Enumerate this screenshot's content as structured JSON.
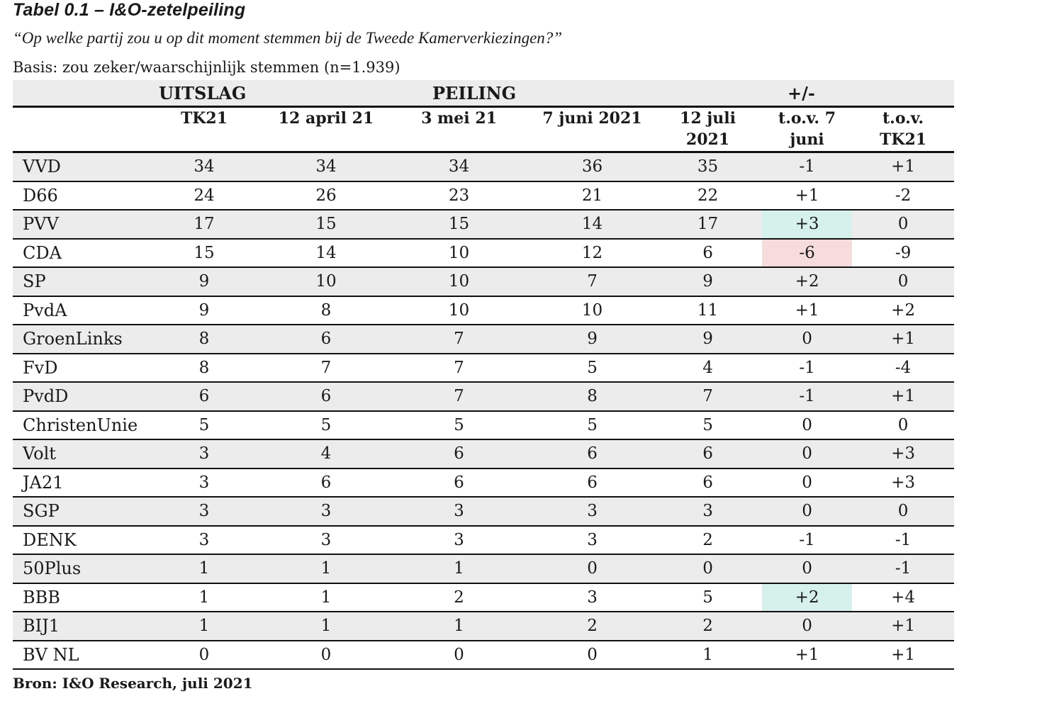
{
  "title": "Tabel 0.1 – I&O-zetelpeiling",
  "question": "“Op welke partij zou u op dit moment stemmen bij de Tweede Kamerverkiezingen?”",
  "basis": "Basis: zou zeker/waarschijnlijk stemmen (n=1.939)",
  "source": "Bron: I&O Research, juli 2021",
  "header_groups": {
    "uitslag": "UITSLAG",
    "peiling": "PEILING",
    "change": "+/-"
  },
  "columns": {
    "tk21": "TK21",
    "apr": "12 april 21",
    "mei": "3 mei 21",
    "jun": "7 juni 2021",
    "jul_line1": "12 juli",
    "jul_line2": "2021",
    "tov7_line1": "t.o.v. 7",
    "tov7_line2": "juni",
    "tovtk_line1": "t.o.v.",
    "tovtk_line2": "TK21"
  },
  "rows": [
    {
      "party": "VVD",
      "tk21": "34",
      "apr": "34",
      "mei": "34",
      "jun": "36",
      "jul": "35",
      "tov7": "-1",
      "tovtk": "+1"
    },
    {
      "party": "D66",
      "tk21": "24",
      "apr": "26",
      "mei": "23",
      "jun": "21",
      "jul": "22",
      "tov7": "+1",
      "tovtk": "-2"
    },
    {
      "party": "PVV",
      "tk21": "17",
      "apr": "15",
      "mei": "15",
      "jun": "14",
      "jul": "17",
      "tov7": "+3",
      "tovtk": "0"
    },
    {
      "party": "CDA",
      "tk21": "15",
      "apr": "14",
      "mei": "10",
      "jun": "12",
      "jul": "6",
      "tov7": "-6",
      "tovtk": "-9"
    },
    {
      "party": "SP",
      "tk21": "9",
      "apr": "10",
      "mei": "10",
      "jun": "7",
      "jul": "9",
      "tov7": "+2",
      "tovtk": "0"
    },
    {
      "party": "PvdA",
      "tk21": "9",
      "apr": "8",
      "mei": "10",
      "jun": "10",
      "jul": "11",
      "tov7": "+1",
      "tovtk": "+2"
    },
    {
      "party": "GroenLinks",
      "tk21": "8",
      "apr": "6",
      "mei": "7",
      "jun": "9",
      "jul": "9",
      "tov7": "0",
      "tovtk": "+1"
    },
    {
      "party": "FvD",
      "tk21": "8",
      "apr": "7",
      "mei": "7",
      "jun": "5",
      "jul": "4",
      "tov7": "-1",
      "tovtk": "-4"
    },
    {
      "party": "PvdD",
      "tk21": "6",
      "apr": "6",
      "mei": "7",
      "jun": "8",
      "jul": "7",
      "tov7": "-1",
      "tovtk": "+1"
    },
    {
      "party": "ChristenUnie",
      "tk21": "5",
      "apr": "5",
      "mei": "5",
      "jun": "5",
      "jul": "5",
      "tov7": "0",
      "tovtk": "0"
    },
    {
      "party": "Volt",
      "tk21": "3",
      "apr": "4",
      "mei": "6",
      "jun": "6",
      "jul": "6",
      "tov7": "0",
      "tovtk": "+3"
    },
    {
      "party": "JA21",
      "tk21": "3",
      "apr": "6",
      "mei": "6",
      "jun": "6",
      "jul": "6",
      "tov7": "0",
      "tovtk": "+3"
    },
    {
      "party": "SGP",
      "tk21": "3",
      "apr": "3",
      "mei": "3",
      "jun": "3",
      "jul": "3",
      "tov7": "0",
      "tovtk": "0"
    },
    {
      "party": "DENK",
      "tk21": "3",
      "apr": "3",
      "mei": "3",
      "jun": "3",
      "jul": "2",
      "tov7": "-1",
      "tovtk": "-1"
    },
    {
      "party": "50Plus",
      "tk21": "1",
      "apr": "1",
      "mei": "1",
      "jun": "0",
      "jul": "0",
      "tov7": "0",
      "tovtk": "-1"
    },
    {
      "party": "BBB",
      "tk21": "1",
      "apr": "1",
      "mei": "2",
      "jun": "3",
      "jul": "5",
      "tov7": "+2",
      "tovtk": "+4"
    },
    {
      "party": "BIJ1",
      "tk21": "1",
      "apr": "1",
      "mei": "1",
      "jun": "2",
      "jul": "2",
      "tov7": "0",
      "tovtk": "+1"
    },
    {
      "party": "BV NL",
      "tk21": "0",
      "apr": "0",
      "mei": "0",
      "jun": "0",
      "jul": "1",
      "tov7": "+1",
      "tovtk": "+1"
    }
  ],
  "highlights": [
    {
      "row": 2,
      "col": "tov7",
      "color": "#d6f0ec",
      "kind": "increase"
    },
    {
      "row": 3,
      "col": "tov7",
      "color": "#f7dcdc",
      "kind": "decrease"
    },
    {
      "row": 15,
      "col": "tov7",
      "color": "#d6f0ec",
      "kind": "increase"
    }
  ],
  "colors": {
    "shade": "#ececec",
    "increase": "#d6f0ec",
    "decrease": "#f7dcdc"
  }
}
